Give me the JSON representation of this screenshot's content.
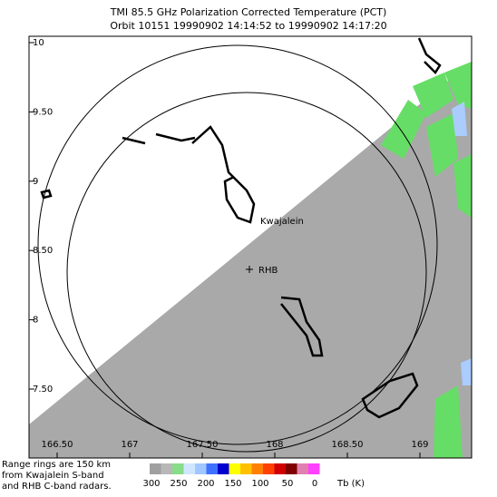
{
  "title": "TMI 85.5 GHz Polarization Corrected Temperature (PCT)",
  "subtitle": "Orbit 10151 19990902 14:14:52 to 19990902 14:17:20",
  "map": {
    "lat_ticks": [
      10,
      {
        "value": 9.5,
        "label": "9.50"
      },
      9,
      {
        "value": 8.5,
        "label": "8.50"
      },
      8,
      {
        "value": 7.5,
        "label": "7.50"
      }
    ],
    "lon_ticks": [
      {
        "value": 166.5,
        "label": "166.50"
      },
      167,
      {
        "value": 167.5,
        "label": "167.50"
      },
      168,
      {
        "value": 168.5,
        "label": "168.50"
      },
      169
    ],
    "places": [
      "Kwajalein",
      "RHB"
    ]
  },
  "note": [
    "Range rings are 150 km",
    "from Kwajalein S-band",
    "and RHB C-band radars."
  ],
  "colorbar": {
    "labels": [
      300,
      250,
      200,
      150,
      100,
      50,
      0
    ],
    "units": "Tb (K)"
  }
}
